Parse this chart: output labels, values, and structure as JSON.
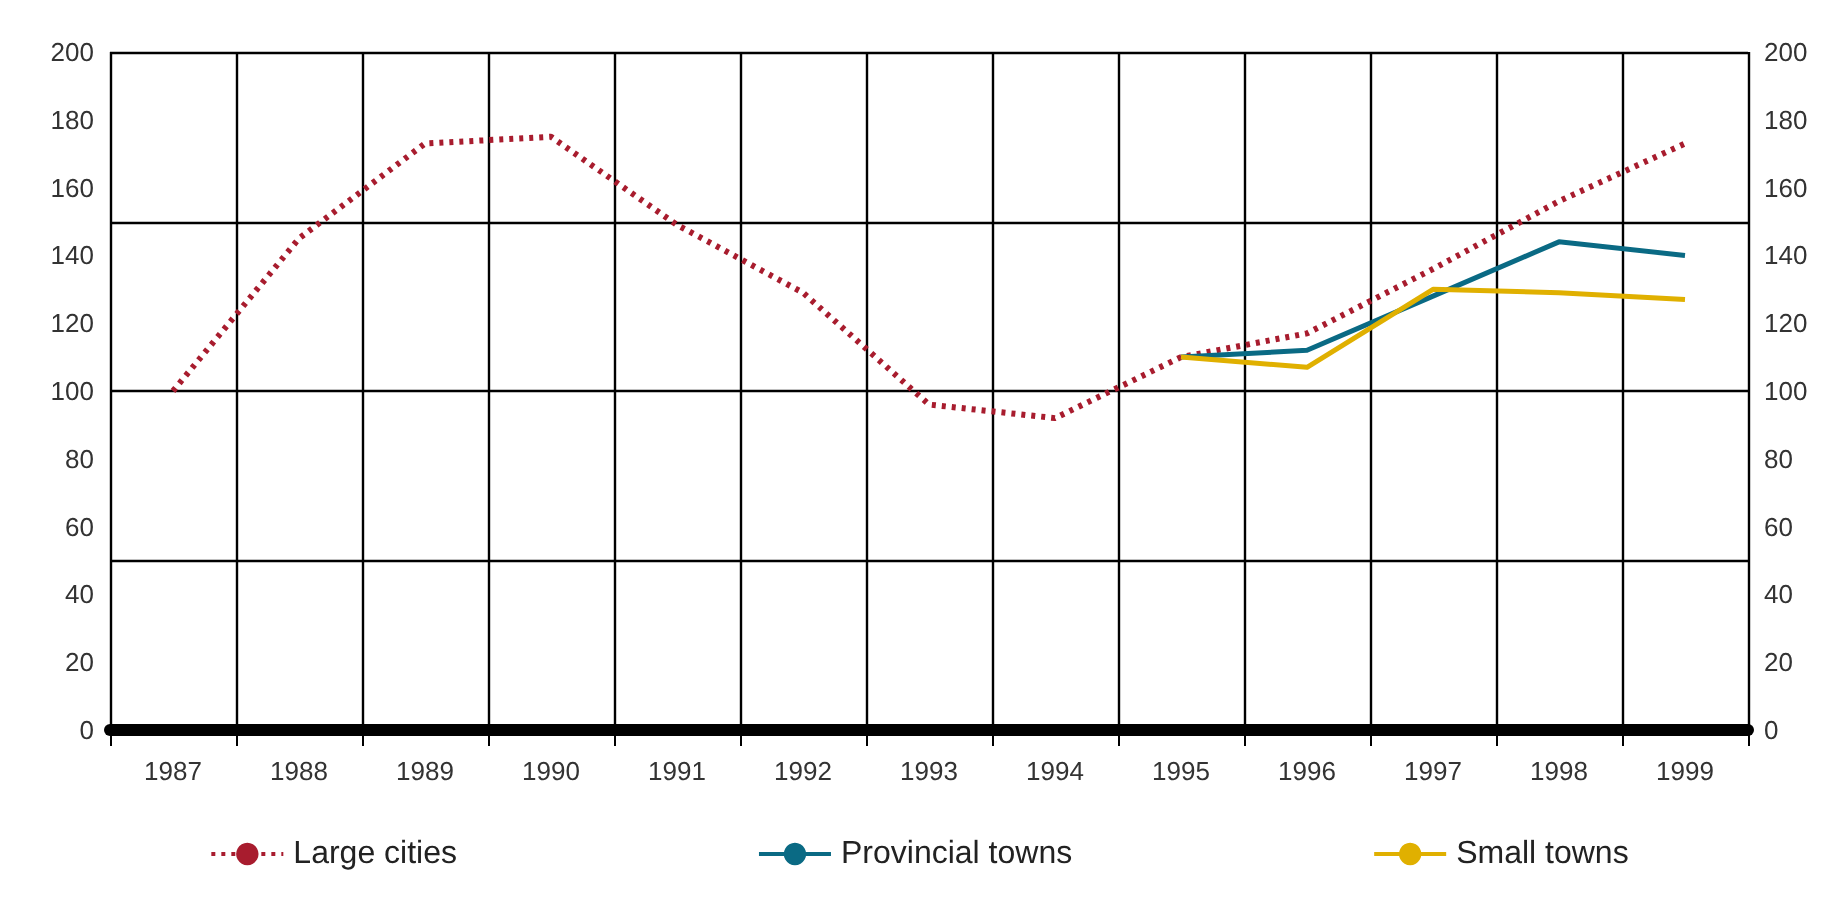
{
  "chart_data": {
    "type": "line",
    "categories": [
      "1987",
      "1988",
      "1989",
      "1990",
      "1991",
      "1992",
      "1993",
      "1994",
      "1995",
      "1996",
      "1997",
      "1998",
      "1999"
    ],
    "series": [
      {
        "name": "Large cities",
        "color": "#a81c2e",
        "line_style": "dotted",
        "values": [
          100,
          145,
          173,
          175,
          149,
          129,
          96,
          92,
          110,
          117,
          136,
          156,
          173
        ]
      },
      {
        "name": "Provincial towns",
        "color": "#0a6a84",
        "line_style": "solid",
        "values": [
          null,
          null,
          null,
          null,
          null,
          null,
          null,
          null,
          110,
          112,
          128,
          144,
          140
        ]
      },
      {
        "name": "Small towns",
        "color": "#e0b000",
        "line_style": "solid",
        "values": [
          null,
          null,
          null,
          null,
          null,
          null,
          null,
          null,
          110,
          107,
          130,
          129,
          127
        ]
      }
    ],
    "ylim": [
      0,
      200
    ],
    "yticks": [
      0,
      20,
      40,
      60,
      80,
      100,
      120,
      140,
      160,
      180,
      200
    ],
    "y2lim": [
      0,
      200
    ],
    "y2ticks": [
      0,
      20,
      40,
      60,
      80,
      100,
      120,
      140,
      160,
      180,
      200
    ],
    "grid": true,
    "legend": "bottom",
    "marker": "none"
  }
}
